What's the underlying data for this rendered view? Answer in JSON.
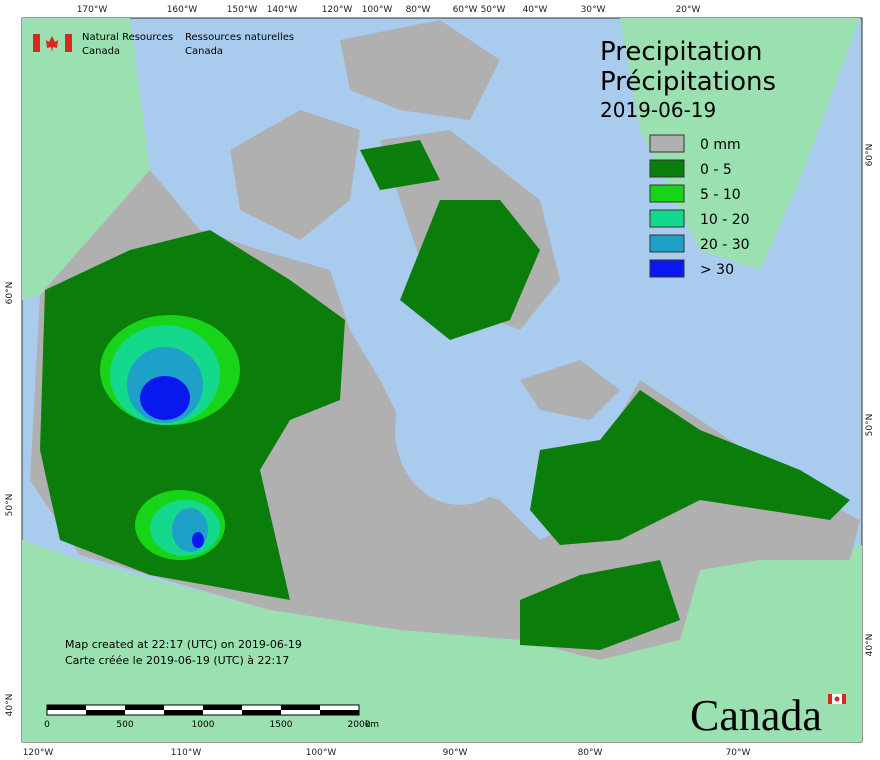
{
  "header": {
    "agency_en": [
      "Natural Resources",
      "Canada"
    ],
    "agency_fr": [
      "Ressources naturelles",
      "Canada"
    ]
  },
  "title": {
    "en": "Precipitation",
    "fr": "Précipitations",
    "date": "2019-06-19"
  },
  "legend": [
    {
      "label": "0 mm",
      "color": "#b0b0b0"
    },
    {
      "label": "0 - 5",
      "color": "#0a7d0a"
    },
    {
      "label": "5 - 10",
      "color": "#18d418"
    },
    {
      "label": "10 - 20",
      "color": "#14d98c"
    },
    {
      "label": "20 - 30",
      "color": "#1fa0c8"
    },
    {
      "label": "> 30",
      "color": "#0a18f0"
    }
  ],
  "graticule": {
    "top": [
      "170°W",
      "160°W",
      "150°W",
      "140°W",
      "120°W",
      "100°W",
      "80°W",
      "60°W",
      "50°W",
      "40°W",
      "30°W",
      "20°W"
    ],
    "bottom": [
      "120°W",
      "110°W",
      "100°W",
      "90°W",
      "80°W",
      "70°W"
    ],
    "left": [
      "60°N",
      "50°N",
      "40°N"
    ],
    "right": [
      "60°N",
      "50°N",
      "40°N"
    ]
  },
  "footer": {
    "created_en": "Map created at 22:17 (UTC) on 2019-06-19",
    "created_fr": "Carte créée le 2019-06-19 (UTC) à 22:17"
  },
  "scale": {
    "labels": [
      "0",
      "500",
      "1000",
      "1500",
      "2000"
    ],
    "unit": "km"
  },
  "wordmark": "Canada"
}
